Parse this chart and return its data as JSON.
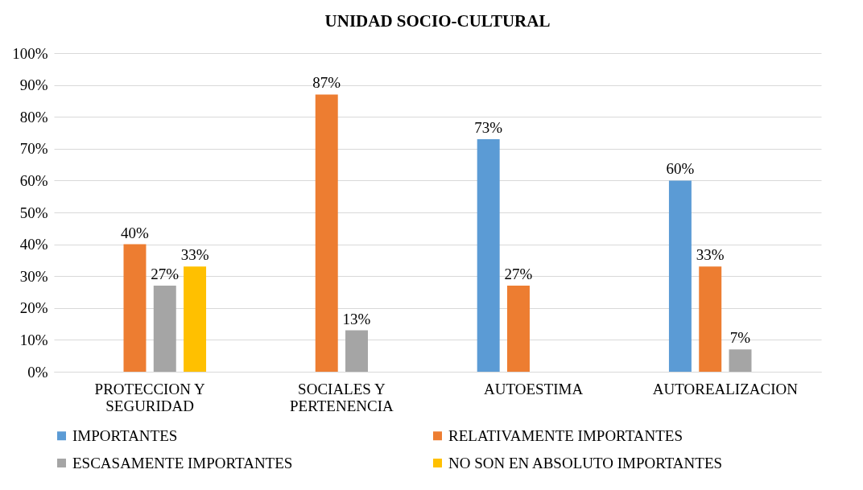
{
  "chart_data": {
    "type": "bar",
    "title": "UNIDAD SOCIO-CULTURAL",
    "categories": [
      "PROTECCION Y SEGURIDAD",
      "SOCIALES Y PERTENENCIA",
      "AUTOESTIMA",
      "AUTOREALIZACION"
    ],
    "series": [
      {
        "name": "IMPORTANTES",
        "color": "#5b9bd5",
        "values": [
          null,
          null,
          73,
          60
        ],
        "value_labels": [
          null,
          null,
          "73%",
          "60%"
        ]
      },
      {
        "name": "RELATIVAMENTE IMPORTANTES",
        "color": "#ed7d31",
        "values": [
          40,
          87,
          27,
          33
        ],
        "value_labels": [
          "40%",
          "87%",
          "27%",
          "33%"
        ]
      },
      {
        "name": "ESCASAMENTE IMPORTANTES",
        "color": "#a5a5a5",
        "values": [
          27,
          13,
          null,
          7
        ],
        "value_labels": [
          "27%",
          "13%",
          null,
          "7%"
        ]
      },
      {
        "name": "NO SON EN ABSOLUTO IMPORTANTES",
        "color": "#ffc000",
        "values": [
          33,
          null,
          null,
          null
        ],
        "value_labels": [
          "33%",
          null,
          null,
          null
        ]
      }
    ],
    "ylim": [
      0,
      100
    ],
    "yticks": [
      {
        "value": 0,
        "label": "0%"
      },
      {
        "value": 10,
        "label": "10%"
      },
      {
        "value": 20,
        "label": "20%"
      },
      {
        "value": 30,
        "label": "30%"
      },
      {
        "value": 40,
        "label": "40%"
      },
      {
        "value": 50,
        "label": "50%"
      },
      {
        "value": 60,
        "label": "60%"
      },
      {
        "value": 70,
        "label": "70%"
      },
      {
        "value": 80,
        "label": "80%"
      },
      {
        "value": 90,
        "label": "90%"
      },
      {
        "value": 100,
        "label": "100%"
      }
    ],
    "grid": "y",
    "legend": "bottom"
  }
}
